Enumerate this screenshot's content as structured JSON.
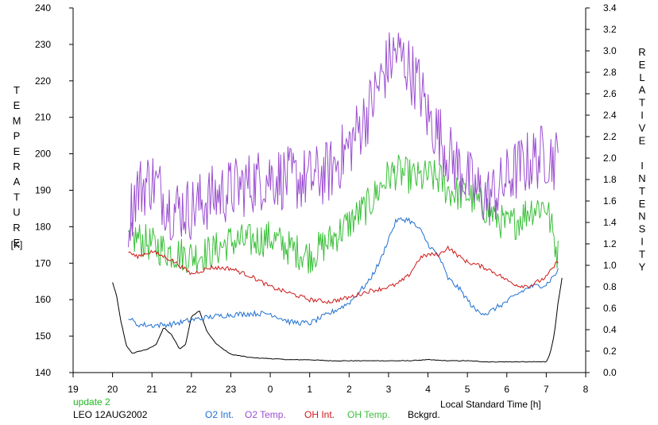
{
  "chart_data": {
    "type": "line",
    "left_axis": {
      "label": "TEMPERATURE",
      "unit": "[K]",
      "range": [
        140,
        240
      ],
      "ticks": [
        "140",
        "150",
        "160",
        "170",
        "180",
        "190",
        "200",
        "210",
        "220",
        "230",
        "240"
      ]
    },
    "right_axis": {
      "label": "RELATIVE INTENSITY",
      "range": [
        0.0,
        3.4
      ],
      "ticks": [
        "0.0",
        "0.2",
        "0.4",
        "0.6",
        "0.8",
        "1.0",
        "1.2",
        "1.4",
        "1.6",
        "1.8",
        "2.0",
        "2.2",
        "2.4",
        "2.6",
        "2.8",
        "3.0",
        "3.2",
        "3.4"
      ]
    },
    "x_axis": {
      "label": "Local Standard Time [h]",
      "ticks": [
        "19",
        "20",
        "21",
        "22",
        "23",
        "0",
        "1",
        "2",
        "3",
        "4",
        "5",
        "6",
        "7",
        "8"
      ]
    },
    "annotations": {
      "update": "update 2",
      "station": "LEO 12AUG2002"
    },
    "legend_placement": "bottom",
    "series": [
      {
        "name": "O2 Int.",
        "axis": "right",
        "color": "#1f6fd0",
        "x": [
          20.4,
          20.6,
          21.0,
          21.5,
          22.0,
          22.5,
          23.0,
          23.5,
          24.0,
          24.5,
          25.0,
          25.5,
          26.0,
          26.5,
          26.8,
          27.0,
          27.2,
          27.5,
          27.8,
          28.0,
          28.3,
          28.5,
          28.8,
          29.0,
          29.2,
          29.5,
          29.8,
          30.0,
          30.3,
          30.6,
          31.0,
          31.3
        ],
        "y": [
          0.52,
          0.45,
          0.44,
          0.45,
          0.49,
          0.52,
          0.54,
          0.55,
          0.55,
          0.47,
          0.46,
          0.55,
          0.65,
          0.85,
          1.05,
          1.25,
          1.42,
          1.43,
          1.33,
          1.2,
          1.07,
          0.88,
          0.78,
          0.68,
          0.58,
          0.55,
          0.62,
          0.66,
          0.74,
          0.8,
          0.82,
          0.95
        ]
      },
      {
        "name": "O2 Temp.",
        "axis": "left",
        "color": "#9b4fd0",
        "x": [
          20.4,
          20.6,
          21.0,
          21.5,
          22.0,
          22.5,
          23.0,
          23.5,
          24.0,
          24.5,
          25.0,
          25.5,
          26.0,
          26.5,
          26.8,
          27.0,
          27.2,
          27.5,
          27.8,
          28.0,
          28.3,
          28.5,
          28.8,
          29.0,
          29.2,
          29.5,
          29.8,
          30.0,
          30.3,
          30.6,
          31.0,
          31.3
        ],
        "y": [
          182,
          190,
          193,
          185,
          185,
          188,
          190,
          192,
          194,
          193,
          193,
          195,
          202,
          212,
          220,
          225,
          228,
          224,
          218,
          210,
          205,
          200,
          196,
          193,
          190,
          188,
          190,
          193,
          196,
          198,
          200,
          198
        ]
      },
      {
        "name": "OH Int.",
        "axis": "right",
        "color": "#d01818",
        "x": [
          20.4,
          20.6,
          21.0,
          21.5,
          22.0,
          22.5,
          23.0,
          23.5,
          24.0,
          24.5,
          25.0,
          25.5,
          26.0,
          26.5,
          26.8,
          27.0,
          27.2,
          27.5,
          27.8,
          28.0,
          28.3,
          28.5,
          28.8,
          29.0,
          29.2,
          29.5,
          29.8,
          30.0,
          30.3,
          30.6,
          31.0,
          31.3
        ],
        "y": [
          1.13,
          1.08,
          1.13,
          1.05,
          0.92,
          0.98,
          0.97,
          0.9,
          0.8,
          0.74,
          0.68,
          0.66,
          0.7,
          0.76,
          0.78,
          0.8,
          0.82,
          0.9,
          1.07,
          1.1,
          1.1,
          1.17,
          1.08,
          1.03,
          1.01,
          0.97,
          0.91,
          0.86,
          0.81,
          0.81,
          0.89,
          1.04
        ]
      },
      {
        "name": "OH Temp.",
        "axis": "left",
        "color": "#3cc03c",
        "x": [
          20.4,
          20.6,
          21.0,
          21.5,
          22.0,
          22.5,
          23.0,
          23.5,
          24.0,
          24.5,
          25.0,
          25.5,
          26.0,
          26.5,
          26.8,
          27.0,
          27.2,
          27.5,
          27.8,
          28.0,
          28.3,
          28.5,
          28.8,
          29.0,
          29.2,
          29.5,
          29.8,
          30.0,
          30.3,
          30.6,
          31.0,
          31.3
        ],
        "y": [
          176,
          177,
          175,
          173,
          172,
          173,
          176,
          176,
          177,
          174,
          172,
          176,
          181,
          186,
          191,
          194,
          195,
          194,
          193,
          194,
          193,
          190,
          189,
          189,
          187,
          185,
          182,
          180,
          182,
          185,
          186,
          172
        ]
      },
      {
        "name": "Bckgrd.",
        "axis": "right",
        "color": "#000000",
        "x": [
          20.0,
          20.1,
          20.2,
          20.35,
          20.5,
          20.7,
          20.9,
          21.1,
          21.3,
          21.5,
          21.7,
          21.85,
          22.0,
          22.2,
          22.4,
          22.6,
          22.8,
          23.0,
          23.5,
          24.0,
          24.5,
          25.0,
          25.5,
          26.0,
          26.5,
          27.0,
          27.5,
          28.0,
          28.5,
          29.0,
          29.5,
          30.0,
          30.5,
          31.0,
          31.1,
          31.2,
          31.3,
          31.4
        ],
        "y": [
          0.84,
          0.72,
          0.5,
          0.25,
          0.18,
          0.2,
          0.22,
          0.26,
          0.42,
          0.35,
          0.22,
          0.26,
          0.52,
          0.58,
          0.38,
          0.28,
          0.22,
          0.17,
          0.14,
          0.13,
          0.12,
          0.12,
          0.11,
          0.11,
          0.11,
          0.11,
          0.11,
          0.12,
          0.11,
          0.11,
          0.1,
          0.1,
          0.1,
          0.1,
          0.18,
          0.35,
          0.65,
          0.88
        ]
      }
    ]
  }
}
